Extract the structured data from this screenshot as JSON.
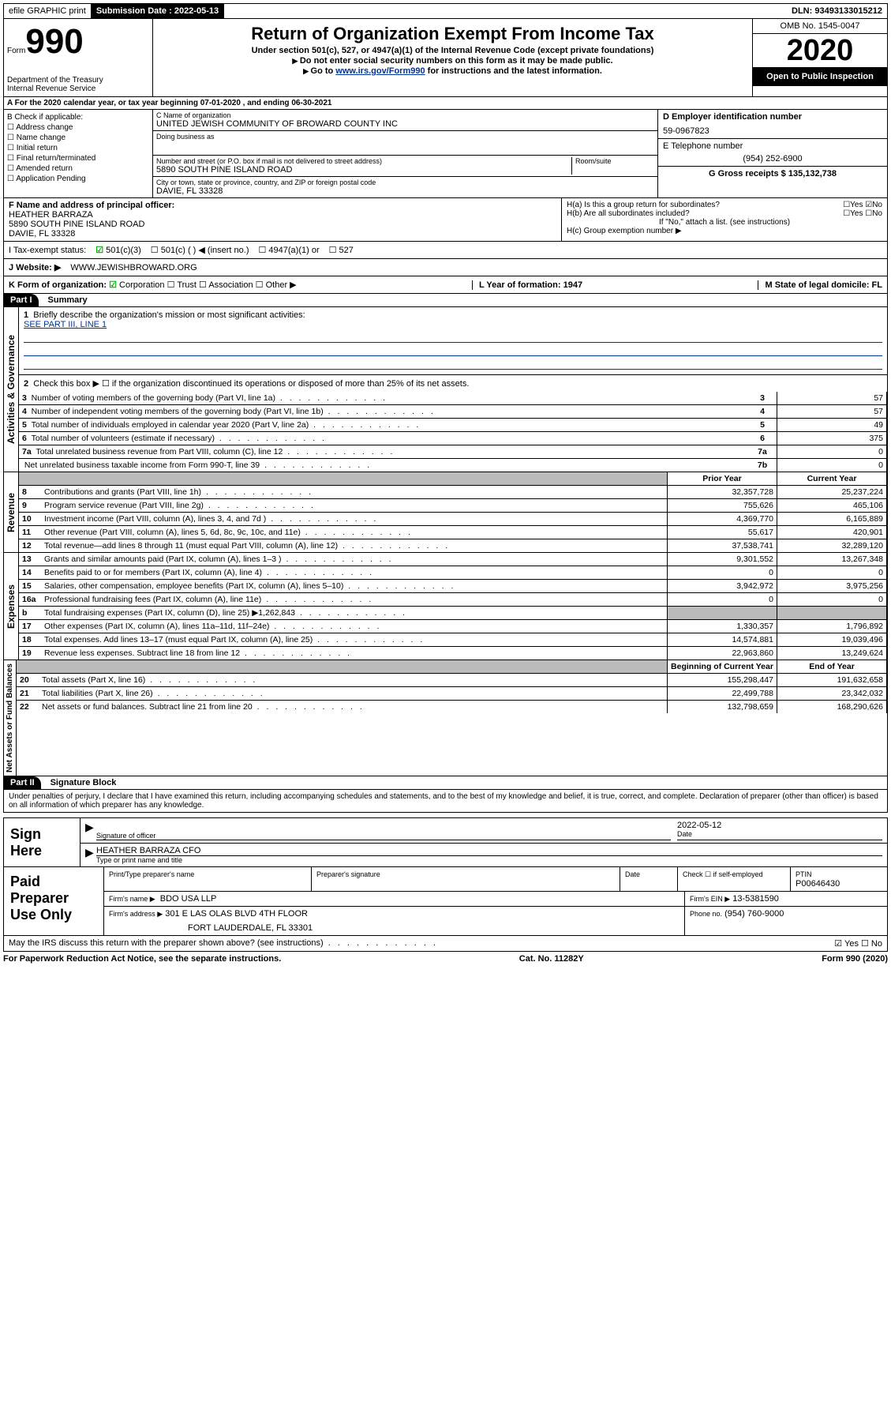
{
  "topbar": {
    "efile": "efile GRAPHIC print",
    "submission_label": "Submission Date : 2022-05-13",
    "dln_label": "DLN: 93493133015212"
  },
  "header": {
    "form_label": "Form",
    "form_num": "990",
    "dept": "Department of the Treasury\nInternal Revenue Service",
    "title": "Return of Organization Exempt From Income Tax",
    "sub1": "Under section 501(c), 527, or 4947(a)(1) of the Internal Revenue Code (except private foundations)",
    "sub2": "Do not enter social security numbers on this form as it may be made public.",
    "sub3_pre": "Go to ",
    "sub3_link": "www.irs.gov/Form990",
    "sub3_post": " for instructions and the latest information.",
    "omb": "OMB No. 1545-0047",
    "year": "2020",
    "inspection": "Open to Public Inspection"
  },
  "section_a": "A For the 2020 calendar year, or tax year beginning 07-01-2020     , and ending 06-30-2021",
  "col_b": {
    "heading": "B Check if applicable:",
    "items": [
      "Address change",
      "Name change",
      "Initial return",
      "Final return/terminated",
      "Amended return",
      "Application Pending"
    ]
  },
  "col_c": {
    "name_label": "C Name of organization",
    "name": "UNITED JEWISH COMMUNITY OF BROWARD COUNTY INC",
    "dba_label": "Doing business as",
    "street_label": "Number and street (or P.O. box if mail is not delivered to street address)",
    "room_label": "Room/suite",
    "street": "5890 SOUTH PINE ISLAND ROAD",
    "city_label": "City or town, state or province, country, and ZIP or foreign postal code",
    "city": "DAVIE, FL  33328"
  },
  "col_d": {
    "ein_label": "D Employer identification number",
    "ein": "59-0967823",
    "phone_label": "E Telephone number",
    "phone": "(954) 252-6900",
    "gross_label": "G Gross receipts $ 135,132,738"
  },
  "officer": {
    "label": "F Name and address of principal officer:",
    "name": "HEATHER BARRAZA",
    "street": "5890 SOUTH PINE ISLAND ROAD",
    "city": "DAVIE, FL  33328",
    "ha": "H(a)  Is this a group return for subordinates?",
    "ha_ans": "☐Yes  ☑No",
    "hb": "H(b)  Are all subordinates included?",
    "hb_ans": "☐Yes  ☐No",
    "hnote": "If \"No,\" attach a list. (see instructions)",
    "hc": "H(c)  Group exemption number ▶"
  },
  "taxexempt": {
    "label": "I   Tax-exempt status:",
    "c3": "501(c)(3)",
    "c": "501(c) (   ) ◀ (insert no.)",
    "a1": "4947(a)(1) or",
    "s527": "527"
  },
  "website": {
    "label": "J   Website: ▶",
    "val": "WWW.JEWISHBROWARD.ORG"
  },
  "korg": {
    "label": "K Form of organization:",
    "corp": "Corporation",
    "trust": "Trust",
    "assoc": "Association",
    "other": "Other ▶",
    "year_label": "L Year of formation: 1947",
    "state_label": "M State of legal domicile: FL"
  },
  "part1": {
    "header": "Part I",
    "title": "Summary",
    "q1": "Briefly describe the organization's mission or most significant activities:",
    "q1_val": "SEE PART III, LINE 1",
    "q2": "Check this box ▶ ☐  if the organization discontinued its operations or disposed of more than 25% of its net assets.",
    "rows_gov": [
      {
        "n": "3",
        "t": "Number of voting members of the governing body (Part VI, line 1a)",
        "rn": "3",
        "v": "57"
      },
      {
        "n": "4",
        "t": "Number of independent voting members of the governing body (Part VI, line 1b)",
        "rn": "4",
        "v": "57"
      },
      {
        "n": "5",
        "t": "Total number of individuals employed in calendar year 2020 (Part V, line 2a)",
        "rn": "5",
        "v": "49"
      },
      {
        "n": "6",
        "t": "Total number of volunteers (estimate if necessary)",
        "rn": "6",
        "v": "375"
      },
      {
        "n": "7a",
        "t": "Total unrelated business revenue from Part VIII, column (C), line 12",
        "rn": "7a",
        "v": "0"
      },
      {
        "n": "",
        "t": "Net unrelated business taxable income from Form 990-T, line 39",
        "rn": "7b",
        "v": "0"
      }
    ],
    "py_header": "Prior Year",
    "cy_header": "Current Year",
    "rows_rev": [
      {
        "n": "8",
        "t": "Contributions and grants (Part VIII, line 1h)",
        "py": "32,357,728",
        "cy": "25,237,224"
      },
      {
        "n": "9",
        "t": "Program service revenue (Part VIII, line 2g)",
        "py": "755,626",
        "cy": "465,106"
      },
      {
        "n": "10",
        "t": "Investment income (Part VIII, column (A), lines 3, 4, and 7d )",
        "py": "4,369,770",
        "cy": "6,165,889"
      },
      {
        "n": "11",
        "t": "Other revenue (Part VIII, column (A), lines 5, 6d, 8c, 9c, 10c, and 11e)",
        "py": "55,617",
        "cy": "420,901"
      },
      {
        "n": "12",
        "t": "Total revenue—add lines 8 through 11 (must equal Part VIII, column (A), line 12)",
        "py": "37,538,741",
        "cy": "32,289,120"
      }
    ],
    "rows_exp": [
      {
        "n": "13",
        "t": "Grants and similar amounts paid (Part IX, column (A), lines 1–3 )",
        "py": "9,301,552",
        "cy": "13,267,348"
      },
      {
        "n": "14",
        "t": "Benefits paid to or for members (Part IX, column (A), line 4)",
        "py": "0",
        "cy": "0"
      },
      {
        "n": "15",
        "t": "Salaries, other compensation, employee benefits (Part IX, column (A), lines 5–10)",
        "py": "3,942,972",
        "cy": "3,975,256"
      },
      {
        "n": "16a",
        "t": "Professional fundraising fees (Part IX, column (A), line 11e)",
        "py": "0",
        "cy": "0"
      },
      {
        "n": "b",
        "t": "Total fundraising expenses (Part IX, column (D), line 25) ▶1,262,843",
        "py": "grey",
        "cy": "grey"
      },
      {
        "n": "17",
        "t": "Other expenses (Part IX, column (A), lines 11a–11d, 11f–24e)",
        "py": "1,330,357",
        "cy": "1,796,892"
      },
      {
        "n": "18",
        "t": "Total expenses. Add lines 13–17 (must equal Part IX, column (A), line 25)",
        "py": "14,574,881",
        "cy": "19,039,496"
      },
      {
        "n": "19",
        "t": "Revenue less expenses. Subtract line 18 from line 12",
        "py": "22,963,860",
        "cy": "13,249,624"
      }
    ],
    "bcy_header": "Beginning of Current Year",
    "eoy_header": "End of Year",
    "rows_net": [
      {
        "n": "20",
        "t": "Total assets (Part X, line 16)",
        "py": "155,298,447",
        "cy": "191,632,658"
      },
      {
        "n": "21",
        "t": "Total liabilities (Part X, line 26)",
        "py": "22,499,788",
        "cy": "23,342,032"
      },
      {
        "n": "22",
        "t": "Net assets or fund balances. Subtract line 21 from line 20",
        "py": "132,798,659",
        "cy": "168,290,626"
      }
    ],
    "vlabels": {
      "gov": "Activities & Governance",
      "rev": "Revenue",
      "exp": "Expenses",
      "net": "Net Assets or Fund Balances"
    }
  },
  "part2": {
    "header": "Part II",
    "title": "Signature Block",
    "perjury": "Under penalties of perjury, I declare that I have examined this return, including accompanying schedules and statements, and to the best of my knowledge and belief, it is true, correct, and complete. Declaration of preparer (other than officer) is based on all information of which preparer has any knowledge.",
    "sign_here": "Sign Here",
    "sig_officer": "Signature of officer",
    "date_label": "Date",
    "date_val": "2022-05-12",
    "officer_name": "HEATHER BARRAZA  CFO",
    "type_label": "Type or print name and title",
    "paid_label": "Paid Preparer Use Only",
    "prep_name_label": "Print/Type preparer's name",
    "prep_sig_label": "Preparer's signature",
    "check_self": "Check ☐ if self-employed",
    "ptin_label": "PTIN",
    "ptin": "P00646430",
    "firm_name_label": "Firm's name    ▶",
    "firm_name": "BDO USA LLP",
    "firm_ein_label": "Firm's EIN ▶",
    "firm_ein": "13-5381590",
    "firm_addr_label": "Firm's address ▶",
    "firm_addr1": "301 E LAS OLAS BLVD 4TH FLOOR",
    "firm_addr2": "FORT LAUDERDALE, FL  33301",
    "phone_label": "Phone no.",
    "phone": "(954) 760-9000",
    "discuss": "May the IRS discuss this return with the preparer shown above? (see instructions)",
    "discuss_ans": "☑ Yes  ☐ No"
  },
  "footer": {
    "note": "For Paperwork Reduction Act Notice, see the separate instructions.",
    "cat": "Cat. No. 11282Y",
    "form": "Form 990 (2020)"
  }
}
